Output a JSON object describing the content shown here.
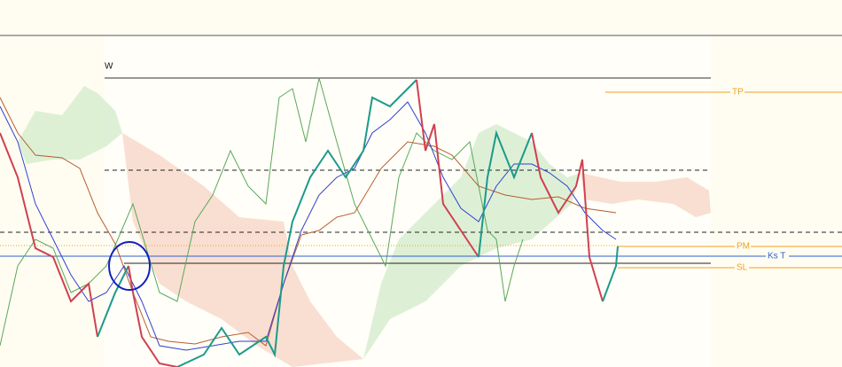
{
  "labels": {
    "wave": "W",
    "take_profit": "TP",
    "pivot": "PM",
    "kijun": "Ks T",
    "stop_loss": "SL"
  }
}
